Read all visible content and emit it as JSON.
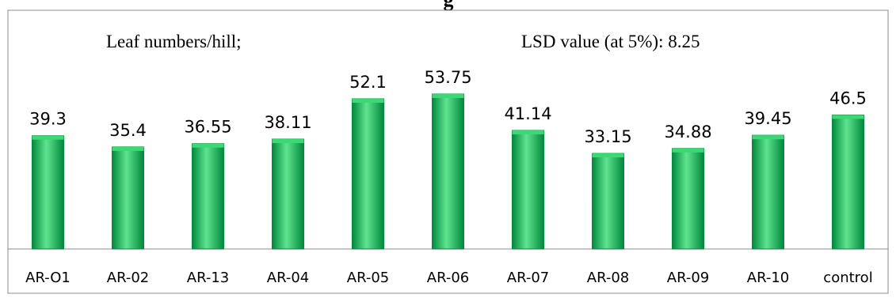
{
  "chart_data": {
    "type": "bar",
    "title": "",
    "annotations": {
      "left": "Leaf numbers/hill;",
      "right": "LSD value (at 5%): 8.25"
    },
    "categories": [
      "AR-O1",
      "AR-02",
      "AR-13",
      "AR-04",
      "AR-05",
      "AR-06",
      "AR-07",
      "AR-08",
      "AR-09",
      "AR-10",
      "control"
    ],
    "values": [
      39.3,
      35.4,
      36.55,
      38.11,
      52.1,
      53.75,
      41.14,
      33.15,
      34.88,
      39.45,
      46.5
    ],
    "data_labels": [
      "39.3",
      "35.4",
      "36.55",
      "38.11",
      "52.1",
      "53.75",
      "41.14",
      "33.15",
      "34.88",
      "39.45",
      "46.5"
    ],
    "xlabel": "",
    "ylabel": "",
    "ylim": [
      0,
      60
    ],
    "grid": false,
    "legend": "none",
    "bar_color": "#00b050",
    "bar_color_light": "#5fe38f",
    "bar_color_dark": "#008a3c"
  },
  "header_partial_text": "g"
}
